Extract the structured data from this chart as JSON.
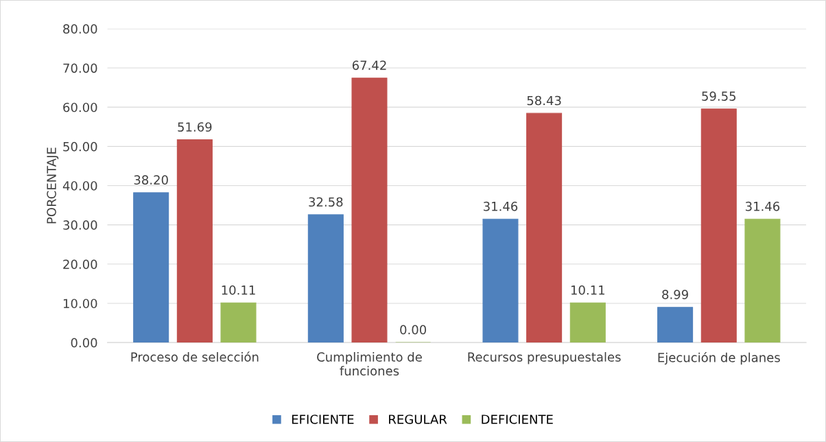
{
  "chart_data": {
    "type": "bar",
    "ylabel": "PORCENTAJE",
    "categories": [
      "Proceso de selección",
      "Cumplimiento de\nfunciones",
      "Recursos presupuestales",
      "Ejecución de planes"
    ],
    "series": [
      {
        "name": "EFICIENTE",
        "color": "#4f81bd",
        "values": [
          38.2,
          32.58,
          31.46,
          8.99
        ],
        "value_labels": [
          "38.20",
          "32.58",
          "31.46",
          "8.99"
        ]
      },
      {
        "name": "REGULAR",
        "color": "#c0504d",
        "values": [
          51.69,
          67.42,
          58.43,
          59.55
        ],
        "value_labels": [
          "51.69",
          "67.42",
          "58.43",
          "59.55"
        ]
      },
      {
        "name": "DEFICIENTE",
        "color": "#9bbb59",
        "values": [
          10.11,
          0.0,
          10.11,
          31.46
        ],
        "value_labels": [
          "10.11",
          "0.00",
          "10.11",
          "31.46"
        ]
      }
    ],
    "ylim": [
      0,
      80
    ],
    "yticks": [
      {
        "value": 0,
        "label": "0.00"
      },
      {
        "value": 10,
        "label": "10.00"
      },
      {
        "value": 20,
        "label": "20.00"
      },
      {
        "value": 30,
        "label": "30.00"
      },
      {
        "value": 40,
        "label": "40.00"
      },
      {
        "value": 50,
        "label": "50.00"
      },
      {
        "value": 60,
        "label": "60.00"
      },
      {
        "value": 70,
        "label": "70.00"
      },
      {
        "value": 80,
        "label": "80.00"
      }
    ],
    "grid": "y",
    "legend": "bottom"
  }
}
